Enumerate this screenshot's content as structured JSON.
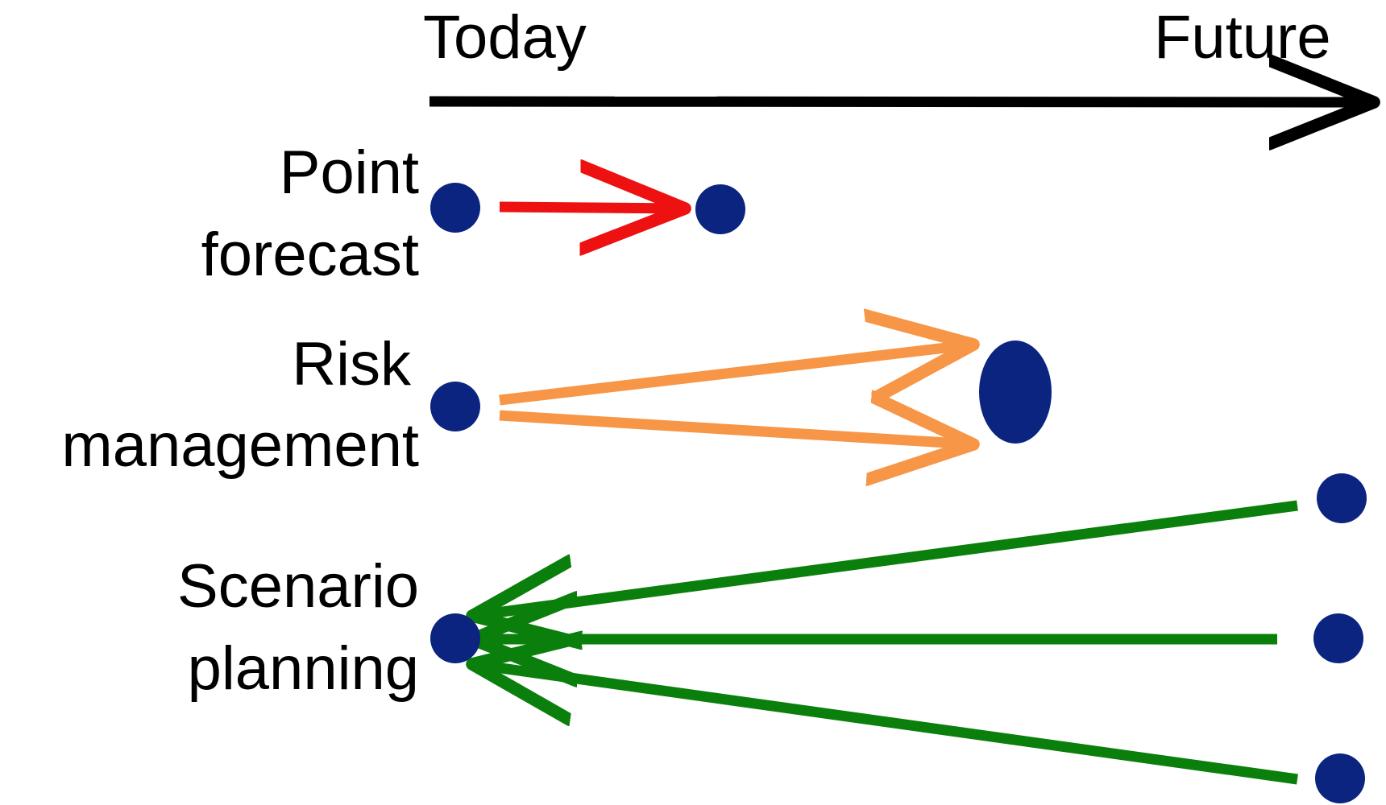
{
  "timeline": {
    "start_label": "Today",
    "end_label": "Future"
  },
  "rows": [
    {
      "line1": "Point",
      "line2": "forecast"
    },
    {
      "line1": "Risk",
      "line2": "management"
    },
    {
      "line1": "Scenario",
      "line2": "planning"
    }
  ],
  "colors": {
    "axis": "#000000",
    "dot": "#0B2480",
    "point_forecast_arrow": "#EE1111",
    "risk_arrow": "#F79646",
    "scenario_arrow": "#0B7F0B"
  }
}
